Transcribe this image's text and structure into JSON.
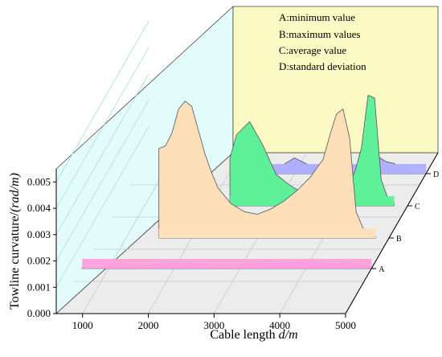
{
  "chart_data": {
    "type": "area",
    "xlabel": "Cable length d/m",
    "ylabel": "Towline curvature/(rad/m)",
    "x_ticks": [
      "1000",
      "2000",
      "3000",
      "4000",
      "5000"
    ],
    "y_ticks": [
      "0.000",
      "0.001",
      "0.002",
      "0.003",
      "0.004",
      "0.005"
    ],
    "xlim": [
      600,
      5000
    ],
    "ylim": [
      0,
      0.0055
    ],
    "legend_items": [
      "A:minimum value",
      "B:maximum values",
      "C:average value",
      "D:standard deviation"
    ],
    "legend_placement": "top-right (back wall)",
    "x": [
      600,
      800,
      1000,
      1200,
      1400,
      1500,
      1600,
      1700,
      1800,
      1900,
      2000,
      2100,
      2200,
      2300,
      2400,
      2600,
      2800,
      3000,
      3200,
      3400,
      3600,
      3800,
      4000,
      4100,
      4200,
      4300,
      4400,
      4500,
      4600,
      4700,
      4800,
      5000
    ],
    "series": [
      {
        "name": "A",
        "color": "#ff9fdc",
        "values": [
          5e-05,
          5e-05,
          6e-05,
          7e-05,
          8e-05,
          0.0001,
          0.00012,
          0.00015,
          0.00017,
          0.00019,
          0.0002,
          0.0002,
          0.00019,
          0.00018,
          0.00017,
          0.00015,
          0.00015,
          0.00016,
          0.00018,
          0.0002,
          0.0002,
          0.00022,
          0.00027,
          0.00029,
          0.00022,
          0.00017,
          0.00015,
          0.00016,
          0.0002,
          0.00022,
          0.00015,
          5e-05
        ]
      },
      {
        "name": "B",
        "color": "#fde0ba",
        "values": [
          0.0,
          0.0,
          0.0,
          0.0,
          0.0,
          0.0034,
          0.0035,
          0.004,
          0.0049,
          0.0052,
          0.005,
          0.0041,
          0.0032,
          0.0025,
          0.0019,
          0.0013,
          0.001,
          0.0009,
          0.0011,
          0.0014,
          0.0018,
          0.0023,
          0.003,
          0.0039,
          0.0047,
          0.0049,
          0.0038,
          0.001,
          0.0004,
          0.0002,
          5e-05,
          0.0
        ],
        "x_start": 1500,
        "x_end": 4800
      },
      {
        "name": "C",
        "color": "#5ff09a",
        "values": [
          0.0,
          0.0,
          0.0,
          0.0,
          0.0,
          0.0,
          0.0,
          0.0,
          0.0,
          0.0,
          0.0,
          0.0,
          0.0,
          0.0018,
          0.0027,
          0.0032,
          0.0023,
          0.0012,
          0.0008,
          0.0005,
          0.0004,
          0.0004,
          0.0006,
          0.0008,
          0.0013,
          0.0022,
          0.0042,
          0.0041,
          0.001,
          0.0003,
          0.0001,
          0.0
        ],
        "x_start": 2300,
        "x_end": 4800
      },
      {
        "name": "D",
        "color": "#aeb0ff",
        "values": [
          0.0,
          0.0,
          0.0,
          0.0,
          0.0,
          0.0,
          0.0,
          0.0,
          0.0,
          0.0,
          0.0,
          0.0,
          0.0,
          0.0,
          0.0,
          0.0,
          0.0003,
          0.0006,
          0.00035,
          0.0002,
          0.0002,
          0.00022,
          0.0003,
          0.0005,
          0.00085,
          0.0006,
          0.00045,
          0.0004,
          0.0003,
          0.0002,
          5e-05,
          0.0
        ],
        "x_start": 2600,
        "x_end": 5000
      }
    ]
  }
}
